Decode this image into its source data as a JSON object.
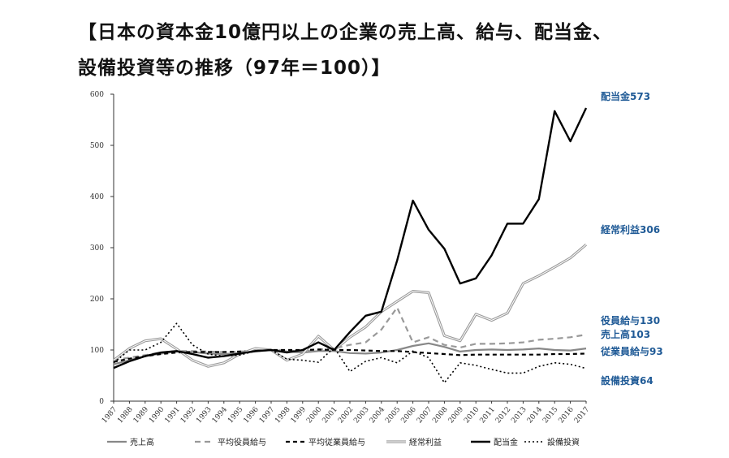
{
  "title_line1": "【日本の資本金10億円以上の企業の売上高、給与、配当金、",
  "title_line2": "設備投資等の推移（97年＝100）】",
  "chart_data": {
    "type": "line",
    "ylim": [
      0,
      600
    ],
    "yticks": [
      0,
      100,
      200,
      300,
      400,
      500,
      600
    ],
    "grid": false,
    "legend_position": "bottom",
    "annotation_color": "#1f5a96",
    "x": [
      "1987",
      "1988",
      "1989",
      "1990",
      "1991",
      "1992",
      "1993",
      "1994",
      "1995",
      "1996",
      "1997",
      "1998",
      "1999",
      "2000",
      "2001",
      "2002",
      "2003",
      "2004",
      "2005",
      "2006",
      "2007",
      "2008",
      "2009",
      "2010",
      "2011",
      "2012",
      "2013",
      "2014",
      "2015",
      "2016",
      "2017"
    ],
    "series": [
      {
        "name": "売上高",
        "color": "#888888",
        "dash": "",
        "width": 2.2,
        "values": [
          72,
          80,
          88,
          93,
          97,
          96,
          93,
          92,
          94,
          97,
          100,
          97,
          95,
          98,
          98,
          94,
          93,
          95,
          100,
          108,
          113,
          106,
          97,
          100,
          101,
          100,
          101,
          103,
          100,
          99,
          103
        ]
      },
      {
        "name": "平均役員給与",
        "color": "#999999",
        "dash": "7,5",
        "width": 2.2,
        "values": [
          80,
          85,
          90,
          95,
          98,
          98,
          97,
          96,
          97,
          98,
          100,
          99,
          97,
          101,
          103,
          110,
          115,
          140,
          183,
          115,
          125,
          110,
          105,
          112,
          112,
          113,
          115,
          120,
          122,
          125,
          130
        ]
      },
      {
        "name": "平均従業員給与",
        "color": "#000000",
        "dash": "5,4",
        "width": 2.2,
        "values": [
          77,
          83,
          88,
          92,
          95,
          96,
          96,
          96,
          97,
          98,
          100,
          100,
          100,
          101,
          100,
          100,
          99,
          98,
          98,
          96,
          94,
          92,
          90,
          91,
          91,
          91,
          91,
          91,
          92,
          92,
          93
        ]
      },
      {
        "name": "経常利益",
        "color": "#9a9a9a",
        "dash": "",
        "width": 1.4,
        "double": true,
        "values": [
          80,
          103,
          118,
          122,
          102,
          80,
          68,
          75,
          92,
          103,
          100,
          80,
          92,
          127,
          100,
          125,
          145,
          175,
          195,
          215,
          212,
          128,
          118,
          170,
          158,
          172,
          230,
          245,
          262,
          280,
          306
        ]
      },
      {
        "name": "配当金",
        "color": "#000000",
        "dash": "",
        "width": 2.4,
        "values": [
          65,
          78,
          88,
          95,
          98,
          92,
          85,
          88,
          93,
          98,
          100,
          95,
          100,
          115,
          100,
          135,
          167,
          175,
          275,
          392,
          335,
          298,
          230,
          240,
          285,
          347,
          347,
          395,
          567,
          508,
          573
        ]
      },
      {
        "name": "設備投資",
        "color": "#000000",
        "dash": "2,3",
        "width": 1.6,
        "values": [
          75,
          100,
          100,
          115,
          152,
          110,
          92,
          88,
          90,
          98,
          100,
          82,
          80,
          76,
          105,
          58,
          78,
          85,
          75,
          98,
          85,
          36,
          75,
          70,
          62,
          55,
          55,
          68,
          75,
          72,
          64
        ]
      }
    ],
    "annotations": [
      {
        "text": "配当金573",
        "value": 573
      },
      {
        "text": "経常利益306",
        "value": 306
      },
      {
        "text": "役員給与130",
        "value": 130
      },
      {
        "text": "売上高103",
        "value": 103
      },
      {
        "text": "従業員給与93",
        "value": 93
      },
      {
        "text": "設備投資64",
        "value": 64
      }
    ]
  }
}
